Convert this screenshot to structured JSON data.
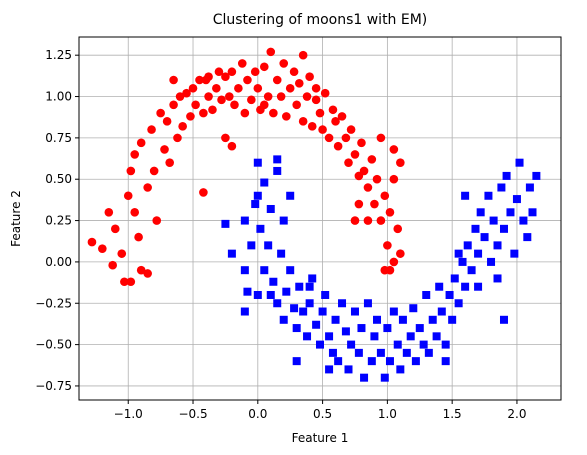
{
  "chart_data": {
    "type": "scatter",
    "title": "Clustering of moons1 with EM)",
    "xlabel": "Feature 1",
    "ylabel": "Feature 2",
    "xlim": [
      -1.38,
      2.34
    ],
    "ylim": [
      -0.835,
      1.36
    ],
    "xticks": [
      -1.0,
      -0.5,
      0.0,
      0.5,
      1.0,
      1.5,
      2.0
    ],
    "xtick_labels": [
      "−1.0",
      "−0.5",
      "0.0",
      "0.5",
      "1.0",
      "1.5",
      "2.0"
    ],
    "yticks": [
      -0.75,
      -0.5,
      -0.25,
      0.0,
      0.25,
      0.5,
      0.75,
      1.0,
      1.25
    ],
    "ytick_labels": [
      "−0.75",
      "−0.50",
      "−0.25",
      "0.00",
      "0.25",
      "0.50",
      "0.75",
      "1.00",
      "1.25"
    ],
    "grid": true,
    "series": [
      {
        "color": "#ff0000",
        "marker": "circle",
        "points": [
          [
            -1.28,
            0.12
          ],
          [
            -1.2,
            0.08
          ],
          [
            -1.15,
            0.3
          ],
          [
            -1.12,
            -0.02
          ],
          [
            -1.1,
            0.2
          ],
          [
            -1.05,
            0.05
          ],
          [
            -1.03,
            -0.12
          ],
          [
            -0.98,
            -0.12
          ],
          [
            -1.0,
            0.4
          ],
          [
            -0.98,
            0.55
          ],
          [
            -0.95,
            0.65
          ],
          [
            -0.95,
            0.3
          ],
          [
            -0.92,
            0.15
          ],
          [
            -0.9,
            0.72
          ],
          [
            -0.9,
            -0.05
          ],
          [
            -0.85,
            0.45
          ],
          [
            -0.85,
            -0.07
          ],
          [
            -0.82,
            0.8
          ],
          [
            -0.8,
            0.55
          ],
          [
            -0.78,
            0.25
          ],
          [
            -0.75,
            0.9
          ],
          [
            -0.72,
            0.68
          ],
          [
            -0.7,
            0.85
          ],
          [
            -0.68,
            0.6
          ],
          [
            -0.65,
            0.95
          ],
          [
            -0.62,
            0.75
          ],
          [
            -0.6,
            1.0
          ],
          [
            -0.58,
            0.82
          ],
          [
            -0.55,
            1.02
          ],
          [
            -0.52,
            0.88
          ],
          [
            -0.5,
            1.05
          ],
          [
            -0.48,
            0.95
          ],
          [
            -0.45,
            1.1
          ],
          [
            -0.42,
            0.9
          ],
          [
            -0.4,
            1.1
          ],
          [
            -0.38,
            1.0
          ],
          [
            -0.35,
            0.92
          ],
          [
            -0.32,
            1.05
          ],
          [
            -0.3,
            1.15
          ],
          [
            -0.28,
            0.98
          ],
          [
            -0.25,
            1.12
          ],
          [
            -0.22,
            1.0
          ],
          [
            -0.2,
            1.15
          ],
          [
            -0.18,
            0.95
          ],
          [
            -0.15,
            1.05
          ],
          [
            -0.12,
            1.2
          ],
          [
            -0.1,
            0.9
          ],
          [
            -0.08,
            1.1
          ],
          [
            -0.05,
            0.98
          ],
          [
            -0.02,
            1.15
          ],
          [
            0.0,
            1.05
          ],
          [
            0.02,
            0.92
          ],
          [
            0.05,
            1.18
          ],
          [
            0.08,
            1.0
          ],
          [
            0.1,
            1.27
          ],
          [
            0.12,
            0.9
          ],
          [
            0.15,
            1.1
          ],
          [
            0.18,
            1.0
          ],
          [
            0.2,
            1.2
          ],
          [
            0.22,
            0.88
          ],
          [
            0.25,
            1.05
          ],
          [
            0.28,
            1.15
          ],
          [
            0.3,
            0.95
          ],
          [
            0.32,
            1.08
          ],
          [
            0.35,
            0.85
          ],
          [
            0.38,
            1.0
          ],
          [
            0.4,
            1.12
          ],
          [
            0.42,
            0.82
          ],
          [
            0.45,
            0.98
          ],
          [
            0.48,
            0.9
          ],
          [
            0.5,
            0.8
          ],
          [
            0.52,
            1.02
          ],
          [
            0.55,
            0.75
          ],
          [
            0.58,
            0.92
          ],
          [
            0.6,
            0.85
          ],
          [
            0.62,
            0.7
          ],
          [
            0.65,
            0.88
          ],
          [
            0.68,
            0.75
          ],
          [
            0.7,
            0.6
          ],
          [
            0.72,
            0.8
          ],
          [
            0.75,
            0.65
          ],
          [
            0.78,
            0.52
          ],
          [
            0.8,
            0.72
          ],
          [
            0.82,
            0.55
          ],
          [
            0.85,
            0.45
          ],
          [
            0.88,
            0.62
          ],
          [
            0.9,
            0.35
          ],
          [
            0.92,
            0.5
          ],
          [
            0.95,
            0.25
          ],
          [
            0.98,
            0.4
          ],
          [
            1.0,
            0.1
          ],
          [
            1.02,
            0.3
          ],
          [
            1.05,
            0.0
          ],
          [
            1.05,
            0.5
          ],
          [
            1.08,
            0.2
          ],
          [
            1.1,
            0.6
          ],
          [
            1.1,
            0.05
          ],
          [
            1.02,
            -0.05
          ],
          [
            0.98,
            -0.05
          ],
          [
            0.85,
            0.25
          ],
          [
            0.78,
            0.35
          ],
          [
            0.75,
            0.25
          ],
          [
            1.05,
            0.68
          ],
          [
            0.95,
            0.75
          ],
          [
            -0.42,
            0.42
          ],
          [
            -0.25,
            0.75
          ],
          [
            -0.2,
            0.7
          ],
          [
            0.05,
            0.95
          ],
          [
            -0.65,
            1.1
          ],
          [
            -0.38,
            1.12
          ],
          [
            0.35,
            1.25
          ],
          [
            0.45,
            1.05
          ]
        ]
      },
      {
        "color": "#0000ff",
        "marker": "square",
        "points": [
          [
            -0.25,
            0.23
          ],
          [
            -0.2,
            0.05
          ],
          [
            -0.1,
            -0.05
          ],
          [
            -0.08,
            -0.18
          ],
          [
            -0.05,
            0.1
          ],
          [
            -0.02,
            0.35
          ],
          [
            0.0,
            0.6
          ],
          [
            0.0,
            -0.2
          ],
          [
            0.02,
            0.2
          ],
          [
            0.05,
            0.48
          ],
          [
            0.05,
            -0.05
          ],
          [
            0.08,
            0.1
          ],
          [
            0.1,
            0.32
          ],
          [
            0.12,
            -0.12
          ],
          [
            0.15,
            0.55
          ],
          [
            0.15,
            -0.25
          ],
          [
            0.18,
            0.05
          ],
          [
            0.2,
            0.25
          ],
          [
            0.2,
            -0.35
          ],
          [
            0.22,
            -0.18
          ],
          [
            0.25,
            0.4
          ],
          [
            0.25,
            -0.05
          ],
          [
            0.28,
            -0.28
          ],
          [
            0.3,
            -0.4
          ],
          [
            0.32,
            -0.15
          ],
          [
            0.35,
            -0.3
          ],
          [
            0.38,
            -0.45
          ],
          [
            0.4,
            -0.25
          ],
          [
            0.42,
            -0.1
          ],
          [
            0.45,
            -0.38
          ],
          [
            0.48,
            -0.5
          ],
          [
            0.5,
            -0.3
          ],
          [
            0.52,
            -0.2
          ],
          [
            0.55,
            -0.45
          ],
          [
            0.58,
            -0.55
          ],
          [
            0.6,
            -0.35
          ],
          [
            0.62,
            -0.6
          ],
          [
            0.65,
            -0.25
          ],
          [
            0.68,
            -0.42
          ],
          [
            0.7,
            -0.65
          ],
          [
            0.72,
            -0.5
          ],
          [
            0.75,
            -0.3
          ],
          [
            0.78,
            -0.55
          ],
          [
            0.8,
            -0.4
          ],
          [
            0.82,
            -0.7
          ],
          [
            0.85,
            -0.25
          ],
          [
            0.88,
            -0.6
          ],
          [
            0.9,
            -0.45
          ],
          [
            0.92,
            -0.35
          ],
          [
            0.95,
            -0.55
          ],
          [
            0.98,
            -0.7
          ],
          [
            1.0,
            -0.4
          ],
          [
            1.02,
            -0.6
          ],
          [
            1.05,
            -0.3
          ],
          [
            1.08,
            -0.5
          ],
          [
            1.1,
            -0.65
          ],
          [
            1.12,
            -0.35
          ],
          [
            1.15,
            -0.55
          ],
          [
            1.18,
            -0.45
          ],
          [
            1.2,
            -0.28
          ],
          [
            1.22,
            -0.6
          ],
          [
            1.25,
            -0.4
          ],
          [
            1.28,
            -0.5
          ],
          [
            1.3,
            -0.2
          ],
          [
            1.32,
            -0.55
          ],
          [
            1.35,
            -0.35
          ],
          [
            1.38,
            -0.45
          ],
          [
            1.4,
            -0.15
          ],
          [
            1.42,
            -0.3
          ],
          [
            1.45,
            -0.5
          ],
          [
            1.48,
            -0.2
          ],
          [
            1.5,
            -0.35
          ],
          [
            1.52,
            -0.1
          ],
          [
            1.55,
            -0.25
          ],
          [
            1.58,
            0.0
          ],
          [
            1.6,
            -0.15
          ],
          [
            1.62,
            0.1
          ],
          [
            1.65,
            -0.05
          ],
          [
            1.68,
            0.2
          ],
          [
            1.7,
            0.05
          ],
          [
            1.72,
            0.3
          ],
          [
            1.75,
            0.15
          ],
          [
            1.78,
            0.4
          ],
          [
            1.8,
            0.0
          ],
          [
            1.82,
            0.25
          ],
          [
            1.85,
            0.1
          ],
          [
            1.88,
            0.45
          ],
          [
            1.9,
            0.2
          ],
          [
            1.92,
            0.52
          ],
          [
            1.95,
            0.3
          ],
          [
            1.98,
            0.05
          ],
          [
            2.0,
            0.38
          ],
          [
            2.02,
            0.6
          ],
          [
            2.05,
            0.25
          ],
          [
            2.08,
            0.15
          ],
          [
            2.1,
            0.45
          ],
          [
            2.12,
            0.3
          ],
          [
            2.15,
            0.52
          ],
          [
            1.85,
            -0.1
          ],
          [
            1.9,
            -0.35
          ],
          [
            1.6,
            0.4
          ],
          [
            1.7,
            -0.15
          ],
          [
            0.3,
            -0.6
          ],
          [
            0.55,
            -0.65
          ],
          [
            0.4,
            -0.15
          ],
          [
            0.1,
            -0.2
          ],
          [
            -0.1,
            -0.3
          ],
          [
            0.15,
            0.62
          ],
          [
            -0.1,
            0.25
          ],
          [
            0.0,
            0.4
          ],
          [
            1.45,
            -0.6
          ],
          [
            1.55,
            0.05
          ]
        ]
      }
    ]
  }
}
